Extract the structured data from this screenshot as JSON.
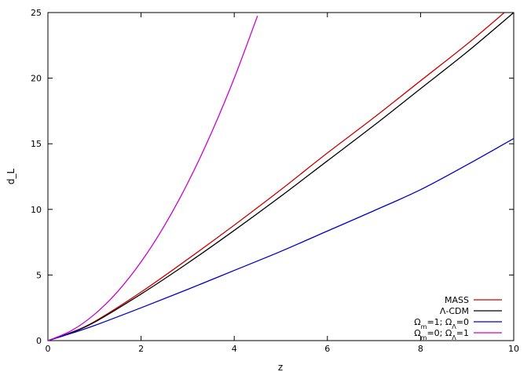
{
  "chart_data": {
    "type": "line",
    "xlabel": "z",
    "ylabel": "d_L",
    "xlim": [
      0,
      10
    ],
    "ylim": [
      0,
      25
    ],
    "xticks": [
      0,
      2,
      4,
      6,
      8,
      10
    ],
    "yticks": [
      0,
      5,
      10,
      15,
      20,
      25
    ],
    "grid": false,
    "legend_position": "bottom-right",
    "series": [
      {
        "name": "MASS",
        "color": "#cc0000",
        "x": [
          0,
          0.5,
          1,
          2,
          3,
          4,
          5,
          6,
          7,
          8,
          9,
          9.8
        ],
        "y": [
          0,
          0.62,
          1.45,
          3.7,
          6.2,
          8.8,
          11.5,
          14.3,
          17.0,
          19.8,
          22.6,
          25.0
        ]
      },
      {
        "name": "Λ-CDM",
        "color": "#000000",
        "x": [
          0,
          0.5,
          1,
          2,
          3,
          4,
          5,
          6,
          7,
          8,
          9,
          10
        ],
        "y": [
          0,
          0.6,
          1.4,
          3.55,
          5.9,
          8.4,
          11.0,
          13.7,
          16.4,
          19.2,
          22.0,
          25.0
        ]
      },
      {
        "name": "Ω_m=1; Ω_Λ=0",
        "color": "#0000cc",
        "x": [
          0,
          0.5,
          1,
          2,
          3,
          4,
          5,
          6,
          7,
          8,
          9,
          10
        ],
        "y": [
          0,
          0.55,
          1.15,
          2.5,
          3.9,
          5.35,
          6.8,
          8.35,
          9.9,
          11.5,
          13.4,
          15.4
        ]
      },
      {
        "name": "Ω_m=0; Ω_Λ=1",
        "color": "#cc00cc",
        "x": [
          0,
          0.5,
          1,
          1.5,
          2,
          2.5,
          3,
          3.5,
          4,
          4.5
        ],
        "y": [
          0,
          0.75,
          2.0,
          3.75,
          6.0,
          8.75,
          12.0,
          15.75,
          20.0,
          24.75
        ]
      }
    ]
  }
}
